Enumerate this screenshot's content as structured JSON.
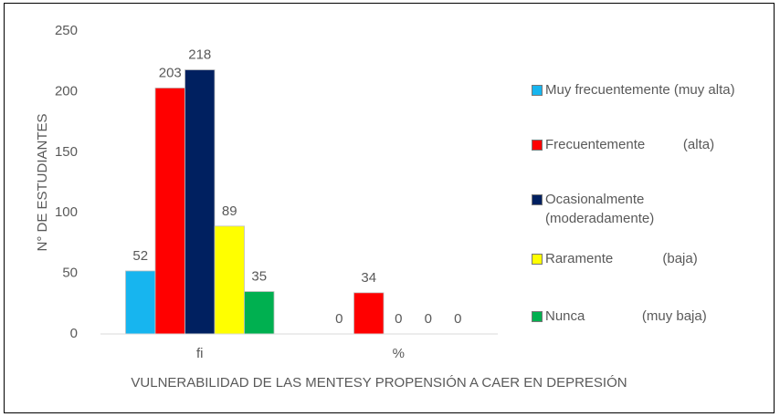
{
  "chart_data": {
    "type": "bar",
    "y_label": "N° DE ESTUDIANTES",
    "x_label": "VULNERABILIDAD DE LAS MENTESY PROPENSIÓN A CAER EN DEPRESIÓN",
    "categories": [
      "fi",
      "%"
    ],
    "series": [
      {
        "name": "Muy frecuentemente (muy alta)",
        "color": "#17b5ef",
        "values": [
          52,
          0
        ]
      },
      {
        "name": "Frecuentemente          (alta)",
        "color": "#ff0000",
        "values": [
          203,
          34
        ]
      },
      {
        "name": "Ocasionalmente (moderadamente)",
        "color": "#002060",
        "values": [
          218,
          0
        ]
      },
      {
        "name": "Raramente             (baja)",
        "color": "#ffff00",
        "values": [
          89,
          0
        ]
      },
      {
        "name": "Nunca               (muy baja)",
        "color": "#00b050",
        "values": [
          35,
          0
        ]
      }
    ],
    "ylim": [
      0,
      250
    ],
    "yticks": [
      0,
      50,
      100,
      150,
      200,
      250
    ],
    "grid": false,
    "legend": "right"
  }
}
